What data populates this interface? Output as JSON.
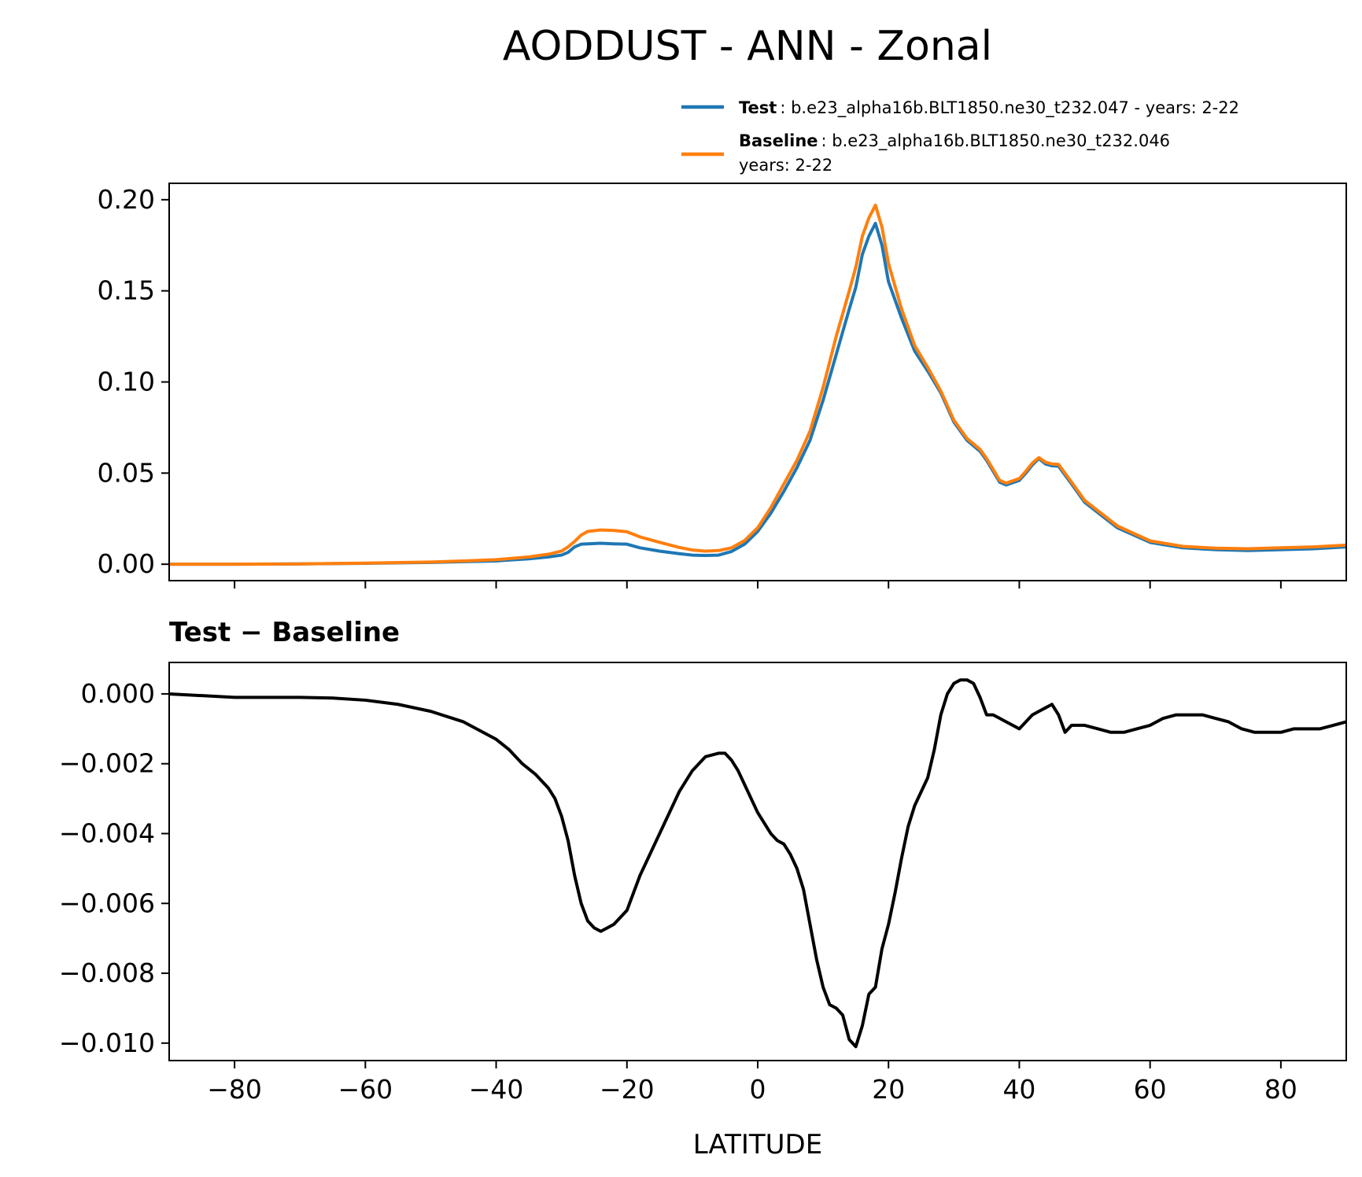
{
  "figure": {
    "title": "AODDUST - ANN - Zonal",
    "xlabel": "LATITUDE"
  },
  "legend": {
    "test": {
      "label_bold": "Test",
      "label_rest": ": b.e23_alpha16b.BLT1850.ne30_t232.047 - years: 2-22",
      "color": "#1f77b4"
    },
    "baseline": {
      "label_bold": "Baseline",
      "label_rest": ": b.e23_alpha16b.BLT1850.ne30_t232.046",
      "label_line2": "years: 2-22",
      "color": "#ff7f0e"
    }
  },
  "chart_data": [
    {
      "type": "line",
      "title": "",
      "xlabel": "",
      "ylabel": "",
      "xlim": [
        -90,
        90
      ],
      "ylim": [
        -0.009,
        0.209
      ],
      "xticks": [
        -80,
        -60,
        -40,
        -20,
        0,
        20,
        40,
        60,
        80
      ],
      "yticks": [
        0.0,
        0.05,
        0.1,
        0.15,
        0.2
      ],
      "ytick_labels": [
        "0.00",
        "0.05",
        "0.10",
        "0.15",
        "0.20"
      ],
      "grid": false,
      "legend": "top-right, above plot",
      "series": [
        {
          "name": "Test",
          "color": "#1f77b4",
          "x": [
            -90,
            -80,
            -70,
            -60,
            -50,
            -45,
            -40,
            -35,
            -32,
            -30,
            -29,
            -28,
            -27,
            -26,
            -24,
            -22,
            -20,
            -18,
            -15,
            -12,
            -10,
            -8,
            -6,
            -4,
            -2,
            0,
            2,
            4,
            6,
            8,
            10,
            12,
            14,
            15,
            16,
            17,
            18,
            19,
            20,
            22,
            24,
            26,
            28,
            30,
            32,
            34,
            35,
            36,
            37,
            38,
            40,
            41,
            42,
            43,
            44,
            45,
            46,
            48,
            50,
            55,
            60,
            65,
            70,
            75,
            80,
            85,
            90
          ],
          "values": [
            0.0,
            0.0,
            0.0002,
            0.0005,
            0.001,
            0.0014,
            0.0018,
            0.003,
            0.004,
            0.005,
            0.0065,
            0.0095,
            0.011,
            0.0112,
            0.0115,
            0.0112,
            0.011,
            0.009,
            0.0072,
            0.0058,
            0.005,
            0.0048,
            0.005,
            0.007,
            0.011,
            0.018,
            0.028,
            0.04,
            0.053,
            0.068,
            0.09,
            0.115,
            0.14,
            0.152,
            0.17,
            0.18,
            0.187,
            0.175,
            0.155,
            0.135,
            0.117,
            0.106,
            0.094,
            0.078,
            0.068,
            0.062,
            0.057,
            0.051,
            0.045,
            0.0435,
            0.046,
            0.05,
            0.0545,
            0.058,
            0.055,
            0.054,
            0.0538,
            0.044,
            0.034,
            0.02,
            0.012,
            0.009,
            0.008,
            0.0075,
            0.008,
            0.0085,
            0.0095
          ]
        },
        {
          "name": "Baseline",
          "color": "#ff7f0e",
          "x": [
            -90,
            -80,
            -70,
            -60,
            -50,
            -45,
            -40,
            -35,
            -32,
            -30,
            -29,
            -28,
            -27,
            -26,
            -24,
            -22,
            -20,
            -18,
            -15,
            -12,
            -10,
            -8,
            -6,
            -4,
            -2,
            0,
            2,
            4,
            6,
            8,
            10,
            12,
            14,
            15,
            16,
            17,
            18,
            19,
            20,
            22,
            24,
            26,
            28,
            30,
            32,
            34,
            35,
            36,
            37,
            38,
            40,
            41,
            42,
            43,
            44,
            45,
            46,
            48,
            50,
            55,
            60,
            65,
            70,
            75,
            80,
            85,
            90
          ],
          "values": [
            0.0,
            0.0,
            0.0002,
            0.0006,
            0.0012,
            0.0018,
            0.0025,
            0.004,
            0.0055,
            0.0072,
            0.0095,
            0.0125,
            0.016,
            0.018,
            0.0188,
            0.0185,
            0.0178,
            0.015,
            0.012,
            0.0092,
            0.0078,
            0.0072,
            0.0075,
            0.009,
            0.013,
            0.02,
            0.031,
            0.044,
            0.057,
            0.073,
            0.097,
            0.125,
            0.15,
            0.163,
            0.18,
            0.19,
            0.197,
            0.185,
            0.165,
            0.14,
            0.12,
            0.108,
            0.095,
            0.079,
            0.069,
            0.063,
            0.058,
            0.052,
            0.046,
            0.0445,
            0.047,
            0.051,
            0.0555,
            0.0585,
            0.056,
            0.055,
            0.0548,
            0.045,
            0.035,
            0.021,
            0.0128,
            0.0098,
            0.0088,
            0.0085,
            0.009,
            0.0095,
            0.0105
          ]
        }
      ]
    },
    {
      "type": "line",
      "title": "Test − Baseline",
      "xlabel": "LATITUDE",
      "ylabel": "",
      "xlim": [
        -90,
        90
      ],
      "ylim": [
        -0.0105,
        0.0009
      ],
      "xticks": [
        -80,
        -60,
        -40,
        -20,
        0,
        20,
        40,
        60,
        80
      ],
      "xtick_labels": [
        "−80",
        "−60",
        "−40",
        "−20",
        "0",
        "20",
        "40",
        "60",
        "80"
      ],
      "yticks": [
        0.0,
        -0.002,
        -0.004,
        -0.006,
        -0.008,
        -0.01
      ],
      "ytick_labels": [
        "0.000",
        "−0.002",
        "−0.004",
        "−0.006",
        "−0.008",
        "−0.010"
      ],
      "grid": false,
      "series": [
        {
          "name": "Test − Baseline",
          "color": "#000000",
          "x": [
            -90,
            -85,
            -80,
            -75,
            -70,
            -65,
            -60,
            -55,
            -50,
            -45,
            -40,
            -38,
            -36,
            -34,
            -32,
            -31,
            -30,
            -29,
            -28,
            -27,
            -26,
            -25,
            -24,
            -23,
            -22,
            -21,
            -20,
            -19,
            -18,
            -16,
            -14,
            -12,
            -10,
            -8,
            -6,
            -5,
            -4,
            -3,
            -2,
            0,
            2,
            3,
            4,
            5,
            6,
            7,
            8,
            9,
            10,
            11,
            12,
            13,
            14,
            15,
            16,
            17,
            18,
            19,
            20,
            21,
            22,
            23,
            24,
            25,
            26,
            27,
            28,
            29,
            30,
            31,
            32,
            33,
            34,
            35,
            36,
            37,
            38,
            39,
            40,
            41,
            42,
            43,
            44,
            45,
            46,
            47,
            48,
            50,
            52,
            54,
            56,
            58,
            60,
            62,
            64,
            66,
            68,
            70,
            72,
            74,
            76,
            78,
            80,
            82,
            84,
            86,
            88,
            90
          ],
          "values": [
            0.0,
            -5e-05,
            -0.0001,
            -0.0001,
            -0.0001,
            -0.00012,
            -0.00018,
            -0.0003,
            -0.0005,
            -0.0008,
            -0.0013,
            -0.0016,
            -0.002,
            -0.0023,
            -0.0027,
            -0.003,
            -0.0035,
            -0.0042,
            -0.0052,
            -0.006,
            -0.0065,
            -0.0067,
            -0.0068,
            -0.0067,
            -0.0066,
            -0.0064,
            -0.0062,
            -0.0057,
            -0.0052,
            -0.0044,
            -0.0036,
            -0.0028,
            -0.0022,
            -0.0018,
            -0.0017,
            -0.0017,
            -0.0019,
            -0.0022,
            -0.0026,
            -0.0034,
            -0.004,
            -0.0042,
            -0.0043,
            -0.0046,
            -0.005,
            -0.0056,
            -0.0066,
            -0.0076,
            -0.0084,
            -0.0089,
            -0.009,
            -0.0092,
            -0.0099,
            -0.0101,
            -0.0095,
            -0.0086,
            -0.0084,
            -0.0073,
            -0.0066,
            -0.0057,
            -0.0047,
            -0.0038,
            -0.0032,
            -0.0028,
            -0.0024,
            -0.0016,
            -0.0006,
            0.0,
            0.0003,
            0.0004,
            0.0004,
            0.0003,
            -0.0001,
            -0.0006,
            -0.0006,
            -0.0007,
            -0.0008,
            -0.0009,
            -0.001,
            -0.0008,
            -0.0006,
            -0.0005,
            -0.0004,
            -0.0003,
            -0.0006,
            -0.0011,
            -0.0009,
            -0.0009,
            -0.001,
            -0.0011,
            -0.0011,
            -0.001,
            -0.0009,
            -0.0007,
            -0.0006,
            -0.0006,
            -0.0006,
            -0.0007,
            -0.0008,
            -0.001,
            -0.0011,
            -0.0011,
            -0.0011,
            -0.001,
            -0.001,
            -0.001,
            -0.0009,
            -0.0008
          ]
        }
      ]
    }
  ]
}
